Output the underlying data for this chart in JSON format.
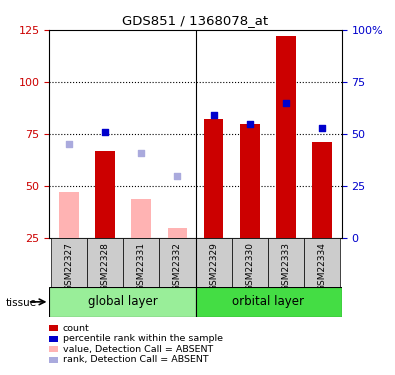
{
  "title": "GDS851 / 1368078_at",
  "samples": [
    "GSM22327",
    "GSM22328",
    "GSM22331",
    "GSM22332",
    "GSM22329",
    "GSM22330",
    "GSM22333",
    "GSM22334"
  ],
  "groups": [
    "global layer",
    "orbital layer"
  ],
  "red_bars": [
    null,
    67,
    null,
    null,
    82,
    80,
    122,
    71
  ],
  "pink_bars": [
    47,
    null,
    44,
    30,
    null,
    null,
    null,
    null
  ],
  "blue_squares_left": [
    null,
    76,
    null,
    null,
    84,
    80,
    90,
    78
  ],
  "light_blue_squares_left": [
    70,
    null,
    66,
    55,
    null,
    null,
    null,
    null
  ],
  "ylim_left": [
    25,
    125
  ],
  "yticks_left": [
    25,
    50,
    75,
    100,
    125
  ],
  "ytick_labels_right": [
    "0",
    "25",
    "50",
    "75",
    "100%"
  ],
  "color_red": "#cc0000",
  "color_pink": "#ffb3b3",
  "color_blue": "#0000cc",
  "color_light_blue": "#aaaadd",
  "color_group_left": "#99ee99",
  "color_group_right": "#44dd44",
  "color_sample_bg": "#cccccc",
  "bar_width": 0.55,
  "square_size": 22,
  "figsize": [
    3.95,
    3.75
  ],
  "dpi": 100
}
